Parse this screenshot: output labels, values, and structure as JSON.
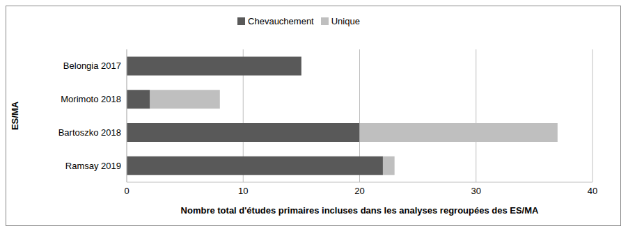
{
  "chart_data": {
    "type": "bar",
    "orientation": "horizontal",
    "stacked": true,
    "categories": [
      "Belongia 2017",
      "Morimoto 2018",
      "Bartoszko 2018",
      "Ramsay 2019"
    ],
    "series": [
      {
        "name": "Chevauchement",
        "color": "#595959",
        "values": [
          15,
          2,
          20,
          22
        ]
      },
      {
        "name": "Unique",
        "color": "#bfbfbf",
        "values": [
          0,
          6,
          17,
          1
        ]
      }
    ],
    "xlabel": "Nombre total d'études primaires incluses dans les analyses regroupées des ES/MA",
    "ylabel": "ES/MA",
    "xlim": [
      0,
      40
    ],
    "xticks": [
      0,
      10,
      20,
      30,
      40
    ],
    "grid": true,
    "legend": "top"
  }
}
